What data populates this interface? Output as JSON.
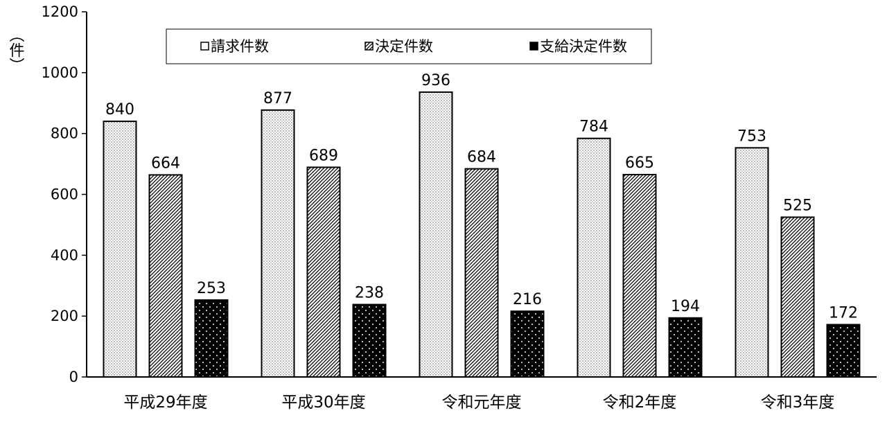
{
  "chart_data": {
    "type": "bar",
    "unit_label": "（件）",
    "categories": [
      "平成29年度",
      "平成30年度",
      "令和元年度",
      "令和2年度",
      "令和3年度"
    ],
    "series": [
      {
        "name": "請求件数",
        "values": [
          840,
          877,
          936,
          784,
          753
        ],
        "pattern": "fine-dots"
      },
      {
        "name": "決定件数",
        "values": [
          664,
          689,
          684,
          665,
          525
        ],
        "pattern": "diagonal-hatch"
      },
      {
        "name": "支給決定件数",
        "values": [
          253,
          238,
          216,
          194,
          172
        ],
        "pattern": "black-with-white-dots"
      }
    ],
    "yticks": [
      0,
      200,
      400,
      600,
      800,
      1000,
      1200
    ],
    "ylim": [
      0,
      1200
    ],
    "grid": false,
    "legend_position": "top",
    "colors": {
      "axis": "#000000",
      "bar_outline": "#000000",
      "background": "#ffffff"
    }
  }
}
